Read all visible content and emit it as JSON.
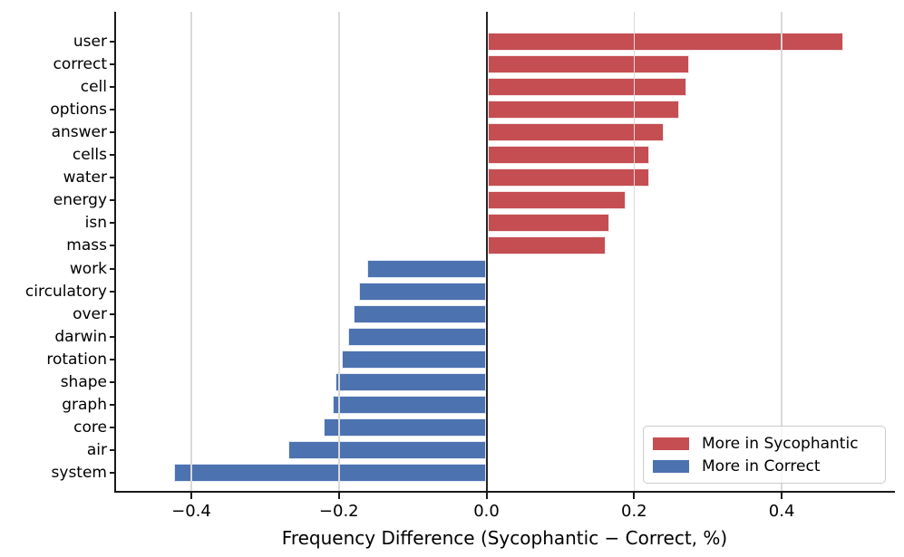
{
  "chart_data": {
    "type": "bar",
    "orientation": "horizontal",
    "title": "",
    "xlabel": "Frequency Difference (Sycophantic − Correct, %)",
    "ylabel": "",
    "categories": [
      "user",
      "correct",
      "cell",
      "options",
      "answer",
      "cells",
      "water",
      "energy",
      "isn",
      "mass",
      "work",
      "circulatory",
      "over",
      "darwin",
      "rotation",
      "shape",
      "graph",
      "core",
      "air",
      "system"
    ],
    "values": [
      0.483,
      0.275,
      0.271,
      0.261,
      0.24,
      0.221,
      0.22,
      0.188,
      0.166,
      0.161,
      -0.162,
      -0.173,
      -0.18,
      -0.188,
      -0.196,
      -0.205,
      -0.208,
      -0.221,
      -0.269,
      -0.423
    ],
    "bar_colors": {
      "positive": "#c44e52",
      "negative": "#4c72b0"
    },
    "xlim": [
      -0.502,
      0.551
    ],
    "x_ticks": [
      {
        "value": -0.4,
        "label": "−0.4"
      },
      {
        "value": -0.2,
        "label": "−0.2"
      },
      {
        "value": 0.0,
        "label": "0.0"
      },
      {
        "value": 0.2,
        "label": "0.2"
      },
      {
        "value": 0.4,
        "label": "0.4"
      }
    ],
    "grid": true,
    "zero_line": true,
    "legend": {
      "position": "lower right",
      "items": [
        {
          "label": "More in Sycophantic",
          "color": "#c44e52"
        },
        {
          "label": "More in Correct",
          "color": "#4c72b0"
        }
      ]
    }
  }
}
